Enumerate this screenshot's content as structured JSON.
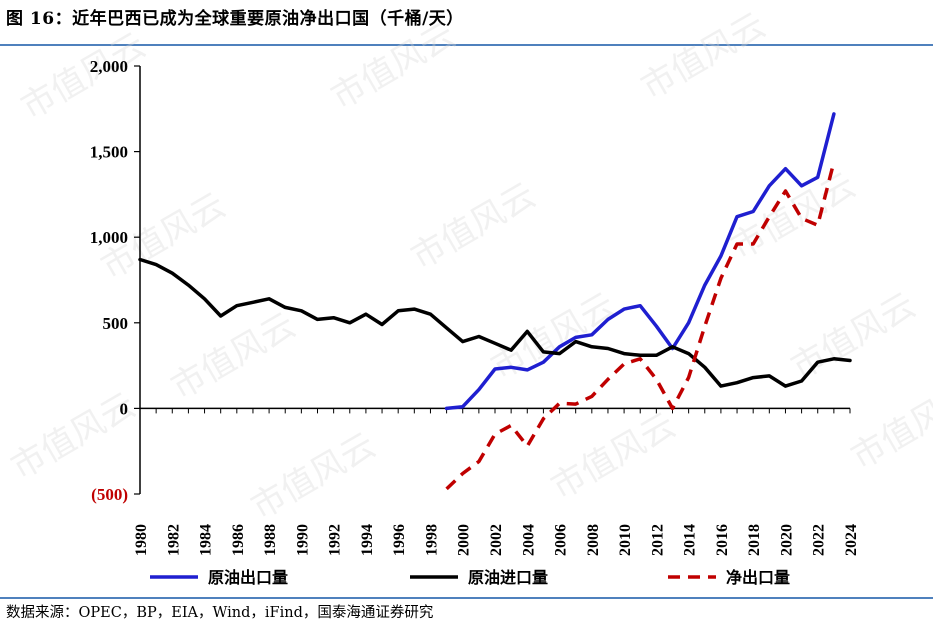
{
  "header": {
    "title": "图 16：近年巴西已成为全球重要原油净出口国（千桶/天）"
  },
  "footer": {
    "source": "数据来源：OPEC，BP，EIA，Wind，iFind，国泰海通证券研究"
  },
  "watermark": "市值风云",
  "chart_data": {
    "type": "line",
    "title": "近年巴西已成为全球重要原油净出口国（千桶/天）",
    "xlabel": "",
    "ylabel": "",
    "ylim": [
      -500,
      2000
    ],
    "yticks": [
      -500,
      0,
      500,
      1000,
      1500,
      2000
    ],
    "ytick_labels": [
      "(500)",
      "0",
      "500",
      "1,000",
      "1,500",
      "2,000"
    ],
    "negative_tick_color": "#c00000",
    "xlim": [
      1980,
      2024
    ],
    "xticks": [
      1980,
      1982,
      1984,
      1986,
      1988,
      1990,
      1992,
      1994,
      1996,
      1998,
      2000,
      2002,
      2004,
      2006,
      2008,
      2010,
      2012,
      2014,
      2016,
      2018,
      2020,
      2022,
      2024
    ],
    "grid": false,
    "legend_position": "bottom",
    "series": [
      {
        "name": "原油出口量",
        "color": "#1f1fd0",
        "style": "solid",
        "x": [
          1999,
          2000,
          2001,
          2002,
          2003,
          2004,
          2005,
          2006,
          2007,
          2008,
          2009,
          2010,
          2011,
          2012,
          2013,
          2014,
          2015,
          2016,
          2017,
          2018,
          2019,
          2020,
          2021,
          2022,
          2023
        ],
        "values": [
          0,
          10,
          110,
          230,
          240,
          225,
          270,
          360,
          415,
          430,
          520,
          580,
          600,
          480,
          350,
          500,
          720,
          890,
          1120,
          1150,
          1300,
          1400,
          1300,
          1350,
          1720
        ]
      },
      {
        "name": "原油进口量",
        "color": "#000000",
        "style": "solid",
        "x": [
          1980,
          1981,
          1982,
          1983,
          1984,
          1985,
          1986,
          1987,
          1988,
          1989,
          1990,
          1991,
          1992,
          1993,
          1994,
          1995,
          1996,
          1997,
          1998,
          1999,
          2000,
          2001,
          2002,
          2003,
          2004,
          2005,
          2006,
          2007,
          2008,
          2009,
          2010,
          2011,
          2012,
          2013,
          2014,
          2015,
          2016,
          2017,
          2018,
          2019,
          2020,
          2021,
          2022,
          2023,
          2024
        ],
        "values": [
          870,
          840,
          790,
          720,
          640,
          540,
          600,
          620,
          640,
          590,
          570,
          520,
          530,
          500,
          550,
          490,
          570,
          580,
          550,
          470,
          390,
          420,
          380,
          340,
          450,
          330,
          320,
          390,
          360,
          350,
          320,
          310,
          310,
          360,
          320,
          240,
          130,
          150,
          180,
          190,
          130,
          160,
          270,
          290,
          280
        ]
      },
      {
        "name": "净出口量",
        "color": "#c00000",
        "style": "dashed",
        "x": [
          1999,
          2000,
          2001,
          2002,
          2003,
          2004,
          2005,
          2006,
          2007,
          2008,
          2009,
          2010,
          2011,
          2012,
          2013,
          2014,
          2015,
          2016,
          2017,
          2018,
          2019,
          2020,
          2021,
          2022,
          2023
        ],
        "values": [
          -470,
          -380,
          -310,
          -150,
          -100,
          -220,
          -60,
          30,
          25,
          70,
          170,
          260,
          290,
          170,
          0,
          180,
          480,
          760,
          960,
          960,
          1120,
          1270,
          1110,
          1070,
          1440
        ]
      }
    ]
  }
}
